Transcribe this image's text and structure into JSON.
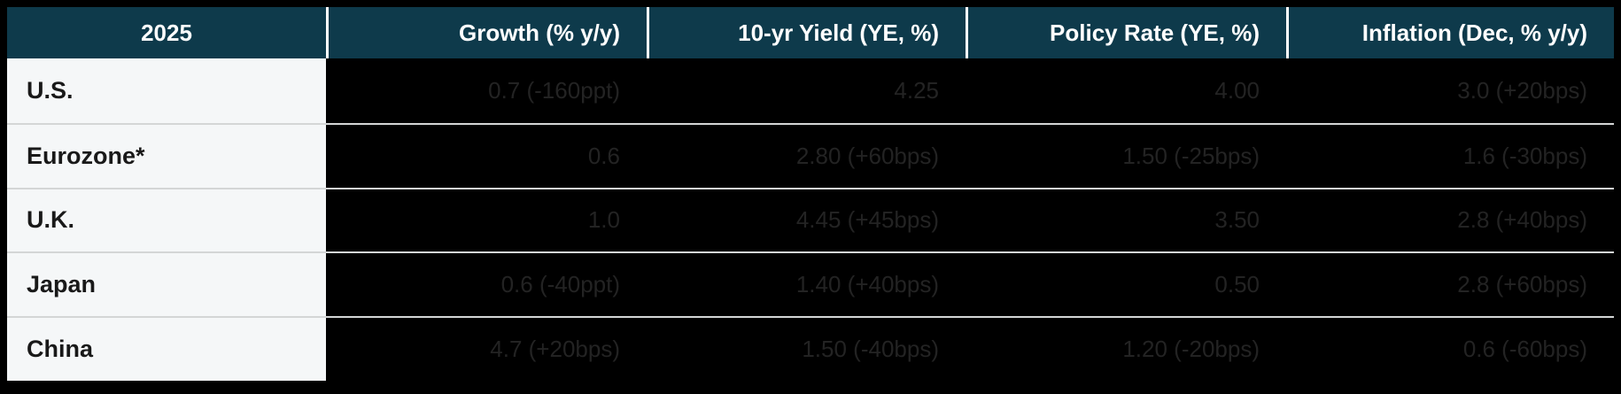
{
  "chart_data": {
    "type": "table",
    "title": "2025",
    "title_cell": "2025",
    "columns": [
      "Growth (% y/y)",
      "10-yr Yield (YE, %)",
      "Policy Rate (YE, %)",
      "Inflation (Dec, % y/y)"
    ],
    "rows": [
      {
        "label": "U.S.",
        "values": [
          "0.7 (-160ppt)",
          "4.25",
          "4.00",
          "3.0 (+20bps)"
        ]
      },
      {
        "label": "Eurozone*",
        "values": [
          "0.6",
          "2.80 (+60bps)",
          "1.50 (-25bps)",
          "1.6 (-30bps)"
        ]
      },
      {
        "label": "U.K.",
        "values": [
          "1.0",
          "4.45 (+45bps)",
          "3.50",
          "2.8 (+40bps)"
        ]
      },
      {
        "label": "Japan",
        "values": [
          "0.6 (-40ppt)",
          "1.40 (+40bps)",
          "0.50",
          "2.8 (+60bps)"
        ]
      },
      {
        "label": "China",
        "values": [
          "4.7 (+20bps)",
          "1.50 (-40bps)",
          "1.20 (-20bps)",
          "0.6 (-60bps)"
        ]
      }
    ],
    "layout_hints": {
      "header_alignment": "right",
      "value_alignment": "right",
      "label_alignment": "left",
      "grid": "horizontal rules between data rows, vertical white dividers in header only"
    }
  },
  "colors": {
    "page_bg": "#000000",
    "header_bg": "#0e3a4b",
    "header_text": "#ffffff",
    "header_divider": "#ffffff",
    "label_bg": "#f5f7f8",
    "label_text": "#191919",
    "data_bg": "#000000",
    "data_text": "#232323",
    "row_divider": "#d4d6d6"
  }
}
